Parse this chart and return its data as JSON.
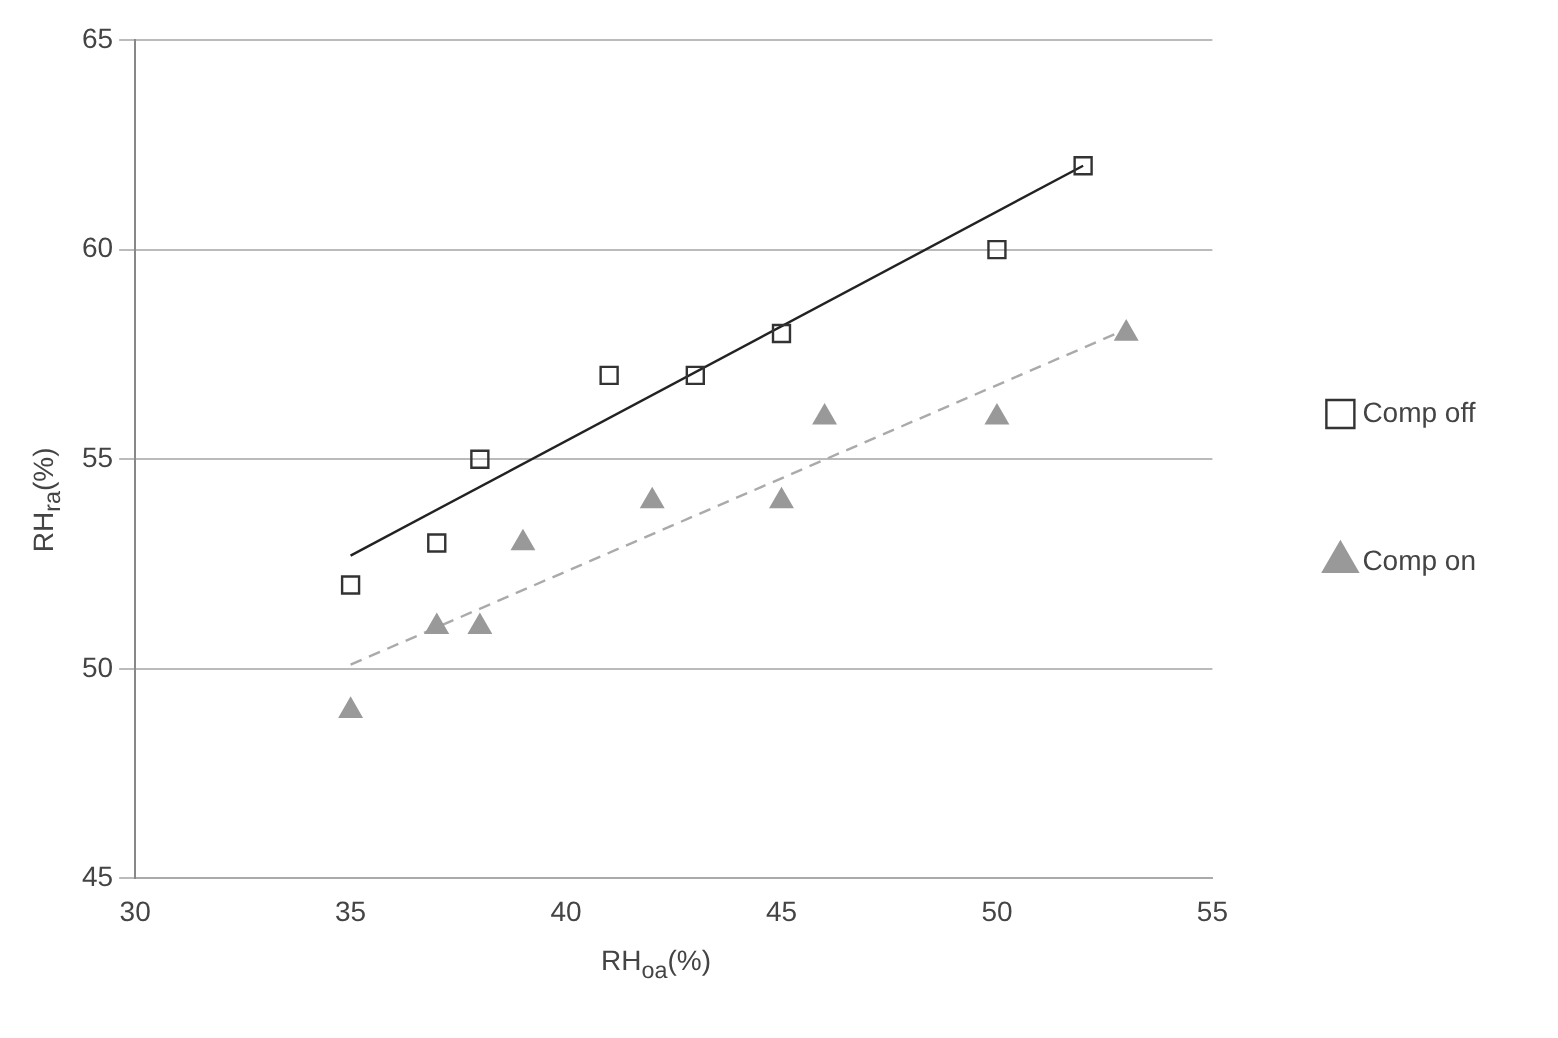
{
  "chart_data": {
    "type": "scatter",
    "xlabel": "RH$_{oa}$(%)",
    "ylabel": "RH$_{ra}$(%)",
    "xlim": [
      30,
      55
    ],
    "xticks": [
      30,
      35,
      40,
      45,
      50,
      55
    ],
    "ylim": [
      45,
      65
    ],
    "yticks": [
      45,
      50,
      55,
      60,
      65
    ],
    "grid": "y",
    "legend": "right",
    "series": [
      {
        "name": "Comp off",
        "color": "#333333",
        "marker": "square",
        "x": [
          35,
          37,
          38,
          41,
          43,
          45,
          50,
          52
        ],
        "values": [
          52,
          53,
          55,
          57,
          57,
          58,
          60,
          62
        ]
      },
      {
        "name": "Comp on",
        "color": "#999999",
        "marker": "triangle",
        "x": [
          35,
          37,
          38,
          39,
          42,
          45,
          46,
          50,
          53
        ],
        "values": [
          49,
          51,
          51,
          53,
          54,
          54,
          56,
          56,
          58
        ]
      },
      {
        "type": "line",
        "color": "#222222",
        "marker": "none",
        "line_style": "solid",
        "x": [
          35,
          52
        ],
        "values": [
          52.7,
          62
        ]
      },
      {
        "type": "line",
        "color": "#aaaaaa",
        "marker": "none",
        "line_style": "dashed",
        "x": [
          35,
          53
        ],
        "values": [
          50.1,
          58.1
        ]
      }
    ]
  }
}
